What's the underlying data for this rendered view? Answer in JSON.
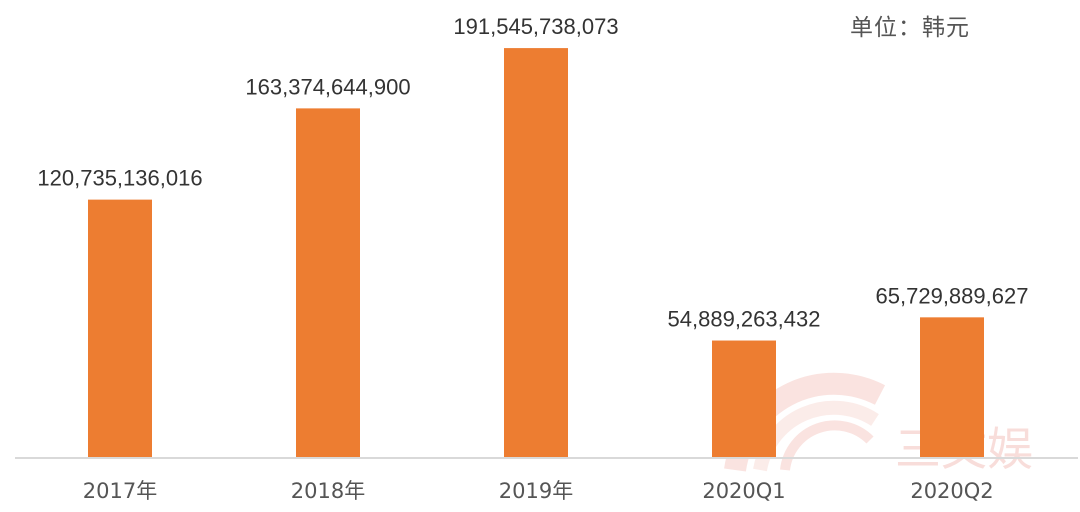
{
  "unit_label": "单位：韩元",
  "watermark": "三文娱",
  "colors": {
    "bar": "#ed7d31",
    "axis": "#d9d9d9",
    "label": "#333333",
    "tick": "#555555"
  },
  "chart_data": {
    "type": "bar",
    "categories": [
      "2017年",
      "2018年",
      "2019年",
      "2020Q1",
      "2020Q2"
    ],
    "values": [
      120735136016,
      163374644900,
      191545738073,
      54889263432,
      65729889627
    ],
    "data_labels": [
      "120,735,136,016",
      "163,374,644,900",
      "191,545,738,073",
      "54,889,263,432",
      "65,729,889,627"
    ],
    "title": "",
    "xlabel": "",
    "ylabel": "",
    "ylim": [
      0,
      200000000000
    ],
    "grid": false,
    "legend": "none"
  }
}
